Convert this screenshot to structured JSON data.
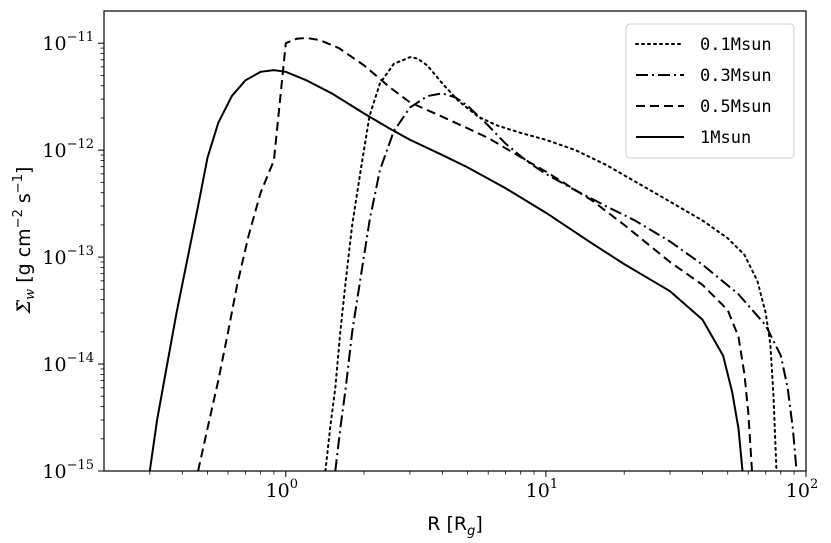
{
  "chart_data": {
    "type": "line",
    "xlabel": "R [R_g]",
    "ylabel": "Σ̇_w [g cm^-2 s^-1]",
    "xscale": "log",
    "yscale": "log",
    "xlim": [
      0.2,
      100
    ],
    "ylim": [
      1e-15,
      2e-11
    ],
    "legend_position": "top-right",
    "grid": false,
    "x_ticks": [
      {
        "value": 1,
        "base": "10",
        "exp": "0"
      },
      {
        "value": 10,
        "base": "10",
        "exp": "1"
      },
      {
        "value": 100,
        "base": "10",
        "exp": "2"
      }
    ],
    "y_ticks": [
      {
        "value": 1e-11,
        "base": "10",
        "exp": "−11"
      },
      {
        "value": 1e-12,
        "base": "10",
        "exp": "−12"
      },
      {
        "value": 1e-13,
        "base": "10",
        "exp": "−13"
      },
      {
        "value": 1e-14,
        "base": "10",
        "exp": "−14"
      },
      {
        "value": 1e-15,
        "base": "10",
        "exp": "−15"
      }
    ],
    "series": [
      {
        "name": "0.1Msun",
        "linestyle": "dotted",
        "x": [
          1.42,
          1.48,
          1.55,
          1.62,
          1.7,
          1.8,
          1.95,
          2.1,
          2.3,
          2.6,
          3.0,
          3.2,
          3.5,
          4.0,
          4.6,
          5.5,
          6.5,
          8.0,
          10.0,
          13.0,
          17.0,
          22.0,
          30.0,
          40.0,
          50.0,
          58.0,
          65.0,
          70.0,
          73.0,
          75.0,
          77.0
        ],
        "y": [
          1e-15,
          2.5e-15,
          6e-15,
          2e-14,
          6e-14,
          2e-13,
          7e-13,
          2.1e-12,
          4.2e-12,
          6.4e-12,
          7.4e-12,
          7.2e-12,
          6.2e-12,
          4.2e-12,
          2.9e-12,
          2.05e-12,
          1.7e-12,
          1.45e-12,
          1.25e-12,
          1e-12,
          7.3e-13,
          5.1e-13,
          3.3e-13,
          2.2e-13,
          1.5e-13,
          1.05e-13,
          6e-14,
          3e-14,
          1.5e-14,
          5e-15,
          1e-15
        ]
      },
      {
        "name": "0.3Msun",
        "linestyle": "dashdot",
        "x": [
          1.55,
          1.62,
          1.7,
          1.8,
          1.95,
          2.1,
          2.3,
          2.6,
          3.0,
          3.5,
          4.0,
          4.5,
          5.0,
          6.0,
          7.0,
          8.5,
          10.0,
          13.0,
          17.0,
          22.0,
          30.0,
          40.0,
          55.0,
          70.0,
          80.0,
          85.0,
          89.0,
          92.0
        ],
        "y": [
          1e-15,
          2.5e-15,
          6e-15,
          2e-14,
          7e-14,
          2.2e-13,
          6.5e-13,
          1.5e-12,
          2.5e-12,
          3.2e-12,
          3.4e-12,
          3.1e-12,
          2.6e-12,
          1.7e-12,
          1.15e-12,
          7.8e-13,
          6e-13,
          4.2e-13,
          3e-13,
          2.2e-13,
          1.4e-13,
          8.5e-14,
          4.5e-14,
          2.3e-14,
          1.2e-14,
          6e-15,
          2.5e-15,
          1e-15
        ]
      },
      {
        "name": "0.5Msun",
        "linestyle": "dashed",
        "x": [
          0.46,
          0.5,
          0.55,
          0.6,
          0.65,
          0.72,
          0.8,
          0.9,
          1.0,
          1.1,
          1.2,
          1.35,
          1.6,
          2.0,
          2.5,
          3.0,
          4.0,
          5.0,
          6.0,
          8.0,
          10.0,
          15.0,
          20.0,
          30.0,
          40.0,
          50.0,
          55.0,
          58.0,
          60.0,
          62.0
        ],
        "y": [
          1e-15,
          2.5e-15,
          7e-15,
          2e-14,
          5.5e-14,
          1.6e-13,
          4e-13,
          8e-13,
          1e-11,
          1.1e-11,
          1.12e-11,
          1.07e-11,
          9e-12,
          6.2e-12,
          3.9e-12,
          2.8e-12,
          2.05e-12,
          1.6e-12,
          1.3e-12,
          8.6e-13,
          6.3e-13,
          3.4e-13,
          2e-13,
          9e-14,
          5.5e-14,
          3.2e-14,
          1.8e-14,
          8e-15,
          3.5e-15,
          1e-15
        ]
      },
      {
        "name": "1Msun",
        "linestyle": "solid",
        "x": [
          0.3,
          0.32,
          0.35,
          0.38,
          0.42,
          0.46,
          0.5,
          0.55,
          0.62,
          0.7,
          0.8,
          0.9,
          1.0,
          1.2,
          1.5,
          2.0,
          2.5,
          3.0,
          4.0,
          5.0,
          7.0,
          10.0,
          15.0,
          20.0,
          30.0,
          40.0,
          48.0,
          52.0,
          55.0,
          57.0
        ],
        "y": [
          1e-15,
          3e-15,
          1e-14,
          3e-14,
          1e-13,
          3e-13,
          8.5e-13,
          1.8e-12,
          3.2e-12,
          4.5e-12,
          5.4e-12,
          5.6e-12,
          5.4e-12,
          4.5e-12,
          3.4e-12,
          2.2e-12,
          1.6e-12,
          1.25e-12,
          9e-13,
          6.9e-13,
          4.4e-13,
          2.6e-13,
          1.35e-13,
          8.6e-14,
          4.8e-14,
          2.6e-14,
          1.2e-14,
          5.5e-15,
          2.5e-15,
          1e-15
        ]
      }
    ]
  }
}
